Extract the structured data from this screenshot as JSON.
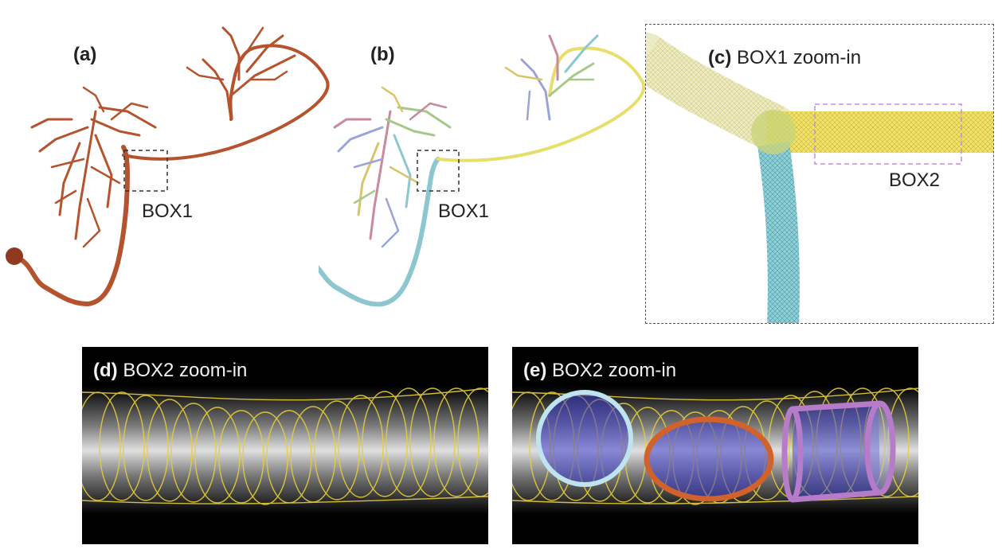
{
  "panels": {
    "a": {
      "tag": "(a)",
      "box_label": "BOX1"
    },
    "b": {
      "tag": "(b)",
      "box_label": "BOX1"
    },
    "c": {
      "tag": "(c)",
      "title": "BOX1 zoom-in",
      "box_label": "BOX2"
    },
    "d": {
      "tag": "(d)",
      "title": "BOX2 zoom-in"
    },
    "e": {
      "tag": "(e)",
      "title": "BOX2 zoom-in"
    }
  },
  "colors": {
    "neuron_a": "#b5532f",
    "neuron_b_main": "#e8de6a",
    "neuron_b_axon": "#8cc6cf",
    "box2_dashed": "#c48be0",
    "circle_light_blue": "#bfe3ef",
    "ellipse_orange": "#d2622b",
    "cylinder_purple": "#b67cc9",
    "yellow_mesh": "#e6cf3a"
  }
}
